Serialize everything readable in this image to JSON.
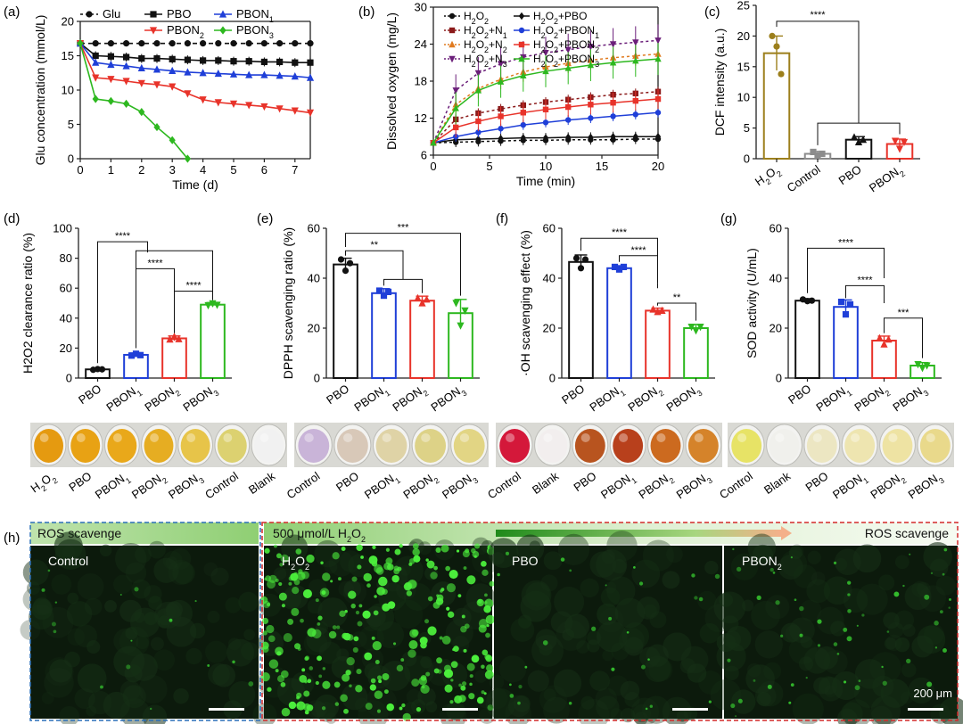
{
  "panel_labels": [
    "(a)",
    "(b)",
    "(c)",
    "(d)",
    "(e)",
    "(f)",
    "(g)",
    "(h)"
  ],
  "colors": {
    "black": "#111111",
    "blue": "#1f3fd8",
    "red": "#e8332a",
    "green": "#2db81f",
    "olive": "#9c7f1c",
    "grey": "#8c8c8c",
    "darkred": "#8b1a1a",
    "orange": "#e07a1f",
    "purple": "#6b1f7a"
  },
  "chart_data": [
    {
      "id": "a",
      "type": "line",
      "title": "",
      "xlabel": "Time (d)",
      "ylabel": "Glu concentration (mmol/L)",
      "xlim": [
        0,
        7.5
      ],
      "ylim": [
        0,
        20
      ],
      "xticks": [
        0,
        1,
        2,
        3,
        4,
        5,
        6,
        7
      ],
      "yticks": [
        0,
        5,
        10,
        15,
        20
      ],
      "series": [
        {
          "name": "Glu",
          "color": "#111111",
          "marker": "circle",
          "dash": true,
          "x": [
            0,
            0.5,
            1,
            1.5,
            2,
            2.5,
            3,
            3.5,
            4,
            4.5,
            5,
            5.5,
            6,
            6.5,
            7,
            7.5
          ],
          "y": [
            16.8,
            16.8,
            16.8,
            16.8,
            16.8,
            16.8,
            16.8,
            16.8,
            16.8,
            16.8,
            16.8,
            16.8,
            16.8,
            16.8,
            16.8,
            16.8
          ]
        },
        {
          "name": "PBO",
          "color": "#111111",
          "marker": "square",
          "dash": false,
          "x": [
            0,
            0.5,
            1,
            1.5,
            2,
            2.5,
            3,
            3.5,
            4,
            4.5,
            5,
            5.5,
            6,
            6.5,
            7,
            7.5
          ],
          "y": [
            16.8,
            15.0,
            14.9,
            14.8,
            14.6,
            14.6,
            14.5,
            14.4,
            14.3,
            14.3,
            14.2,
            14.2,
            14.1,
            14.1,
            14.0,
            14.0
          ]
        },
        {
          "name": "PBON1",
          "color": "#1f3fd8",
          "marker": "triangle",
          "dash": false,
          "x": [
            0,
            0.5,
            1,
            1.5,
            2,
            2.5,
            3,
            3.5,
            4,
            4.5,
            5,
            5.5,
            6,
            6.5,
            7,
            7.5
          ],
          "y": [
            16.8,
            14.0,
            13.7,
            13.5,
            13.2,
            13.0,
            12.8,
            12.6,
            12.5,
            12.4,
            12.3,
            12.2,
            12.2,
            12.1,
            12.0,
            11.8
          ]
        },
        {
          "name": "PBON2",
          "color": "#e8332a",
          "marker": "tri-down",
          "dash": false,
          "x": [
            0,
            0.5,
            1,
            1.5,
            2,
            2.5,
            3,
            3.5,
            4,
            4.5,
            5,
            5.5,
            6,
            6.5,
            7,
            7.5
          ],
          "y": [
            16.8,
            11.8,
            11.6,
            11.3,
            11.0,
            10.8,
            10.5,
            9.5,
            8.6,
            8.2,
            8.0,
            7.8,
            7.6,
            7.3,
            7.0,
            6.7
          ]
        },
        {
          "name": "PBON3",
          "color": "#2db81f",
          "marker": "diamond",
          "dash": false,
          "x": [
            0,
            0.5,
            1,
            1.5,
            2,
            2.5,
            3,
            3.5
          ],
          "y": [
            16.8,
            8.7,
            8.4,
            8.0,
            6.8,
            4.6,
            2.7,
            0
          ]
        }
      ],
      "legend": [
        {
          "name": "Glu",
          "sub": ""
        },
        {
          "name": "PBO",
          "sub": ""
        },
        {
          "name": "PBON",
          "sub": "1"
        },
        {
          "name": "PBON",
          "sub": "2"
        },
        {
          "name": "PBON",
          "sub": "3"
        }
      ]
    },
    {
      "id": "b",
      "type": "line",
      "xlabel": "Time (min)",
      "ylabel": "Dissolved oxygen (mg/L)",
      "xlim": [
        0,
        20
      ],
      "ylim": [
        6,
        30
      ],
      "xticks": [
        0,
        5,
        10,
        15,
        20
      ],
      "yticks": [
        6,
        12,
        18,
        24,
        30
      ],
      "x": [
        0,
        2,
        4,
        6,
        8,
        10,
        12,
        14,
        16,
        18,
        20
      ],
      "series": [
        {
          "name": "H2O2",
          "label": "H",
          "color": "#111111",
          "marker": "circle",
          "dash": true,
          "y": [
            8,
            8.1,
            8.2,
            8.3,
            8.4,
            8.4,
            8.5,
            8.5,
            8.5,
            8.6,
            8.6
          ]
        },
        {
          "name": "H2O2+N1",
          "color": "#8b1a1a",
          "marker": "square",
          "dash": true,
          "y": [
            8,
            11.8,
            12.8,
            13.5,
            14.1,
            14.6,
            15.0,
            15.4,
            15.8,
            16.0,
            16.3
          ]
        },
        {
          "name": "H2O2+N2",
          "color": "#e07a1f",
          "marker": "triangle",
          "dash": true,
          "y": [
            8,
            14.2,
            16.8,
            18.3,
            19.5,
            20.3,
            20.9,
            21.4,
            21.8,
            22.1,
            22.4
          ]
        },
        {
          "name": "H2O2+N3",
          "color": "#6b1f7a",
          "marker": "tri-down",
          "dash": true,
          "y": [
            8,
            16.5,
            19.3,
            20.8,
            21.9,
            22.6,
            23.1,
            23.6,
            24.0,
            24.3,
            24.6
          ]
        },
        {
          "name": "H2O2+PBO",
          "color": "#111111",
          "marker": "diamond",
          "dash": false,
          "y": [
            8,
            8.5,
            8.6,
            8.7,
            8.8,
            8.8,
            8.9,
            8.9,
            9.0,
            9.0,
            9.0
          ]
        },
        {
          "name": "H2O2+PBON1",
          "color": "#1f3fd8",
          "marker": "circle",
          "dash": false,
          "y": [
            8,
            9.0,
            9.7,
            10.3,
            10.9,
            11.3,
            11.7,
            12.0,
            12.3,
            12.6,
            12.9
          ]
        },
        {
          "name": "H2O2+PBON2",
          "color": "#e8332a",
          "marker": "square",
          "dash": false,
          "y": [
            8,
            10.5,
            11.5,
            12.3,
            12.9,
            13.4,
            13.8,
            14.2,
            14.5,
            14.8,
            15.1
          ]
        },
        {
          "name": "H2O2+PBON3",
          "color": "#2db81f",
          "marker": "triangle",
          "dash": false,
          "y": [
            8,
            13.6,
            16.5,
            17.9,
            18.9,
            19.6,
            20.1,
            20.6,
            21.0,
            21.3,
            21.6
          ]
        }
      ],
      "legend": [
        {
          "a": "H",
          "b": "2",
          "c": "O",
          "d": "2",
          "e": ""
        },
        {
          "a": "H",
          "b": "2",
          "c": "O",
          "d": "2",
          "e": "+PBO"
        },
        {
          "a": "H",
          "b": "2",
          "c": "O",
          "d": "2",
          "e": "+N",
          "f": "1"
        },
        {
          "a": "H",
          "b": "2",
          "c": "O",
          "d": "2",
          "e": "+PBON",
          "f": "1"
        },
        {
          "a": "H",
          "b": "2",
          "c": "O",
          "d": "2",
          "e": "+N",
          "f": "2"
        },
        {
          "a": "H",
          "b": "2",
          "c": "O",
          "d": "2",
          "e": "+PBON",
          "f": "2"
        },
        {
          "a": "H",
          "b": "2",
          "c": "O",
          "d": "2",
          "e": "+N",
          "f": "3"
        },
        {
          "a": "H",
          "b": "2",
          "c": "O",
          "d": "2",
          "e": "+PBON",
          "f": "3"
        }
      ]
    },
    {
      "id": "c",
      "type": "bar",
      "ylabel": "DCF intensity (a.u.)",
      "ylim": [
        0,
        25
      ],
      "yticks": [
        0,
        5,
        10,
        15,
        20,
        25
      ],
      "categories": [
        "H2O2",
        "Control",
        "PBO",
        "PBON2"
      ],
      "tick_labels": [
        {
          "t": "H",
          "s1": "2",
          "t2": "O",
          "s2": "2"
        },
        {
          "t": "Control"
        },
        {
          "t": "PBO"
        },
        {
          "t": "PBON",
          "s1": "2"
        }
      ],
      "values": [
        17.2,
        0.8,
        3.1,
        2.4
      ],
      "errors": [
        2.8,
        0.4,
        0.5,
        0.8
      ],
      "points": [
        [
          20,
          18.3,
          13.8
        ],
        [
          1.1,
          0.5,
          0.8
        ],
        [
          3.5,
          2.7,
          3.1
        ],
        [
          2.9,
          1.6,
          2.7
        ]
      ],
      "colors": [
        "#9c7f1c",
        "#8c8c8c",
        "#111111",
        "#e8332a"
      ],
      "significance": [
        "****"
      ]
    },
    {
      "id": "d",
      "type": "bar",
      "ylabel": "H2O2 clearance ratio (%)",
      "ylim": [
        0,
        100
      ],
      "yticks": [
        0,
        20,
        40,
        60,
        80,
        100
      ],
      "categories": [
        "PBO",
        "PBON1",
        "PBON2",
        "PBON3"
      ],
      "values": [
        5.8,
        15.5,
        26.5,
        49.0
      ],
      "errors": [
        0.8,
        1.2,
        1.6,
        1.4
      ],
      "points": [
        [
          5.5,
          6.0,
          5.8
        ],
        [
          15.0,
          16.2,
          15.3
        ],
        [
          25.8,
          27.6,
          26.0
        ],
        [
          48.5,
          49.8,
          48.8
        ]
      ],
      "colors": [
        "#111111",
        "#1f3fd8",
        "#e8332a",
        "#2db81f"
      ],
      "significance": [
        "****",
        "****",
        "****"
      ]
    },
    {
      "id": "e",
      "type": "bar",
      "ylabel": "DPPH scavenging ratio (%)",
      "ylim": [
        0,
        60
      ],
      "yticks": [
        0,
        20,
        40,
        60
      ],
      "categories": [
        "PBO",
        "PBON1",
        "PBON2",
        "PBON3"
      ],
      "values": [
        45.5,
        34.0,
        31.0,
        26.0
      ],
      "errors": [
        2.5,
        1.8,
        1.8,
        5.5
      ],
      "points": [
        [
          47.5,
          43.0,
          46.0
        ],
        [
          35.0,
          33.0,
          34.5
        ],
        [
          32.0,
          30.0,
          31.5
        ],
        [
          30.0,
          21.0,
          27.0
        ]
      ],
      "colors": [
        "#111111",
        "#1f3fd8",
        "#e8332a",
        "#2db81f"
      ],
      "significance": [
        "**",
        "***"
      ]
    },
    {
      "id": "f",
      "type": "bar",
      "ylabel": "·OH scavenging effect (%)",
      "ylim": [
        0,
        60
      ],
      "yticks": [
        0,
        20,
        40,
        60
      ],
      "categories": [
        "PBO",
        "PBON1",
        "PBON2",
        "PBON3"
      ],
      "values": [
        46.5,
        44.0,
        27.0,
        20.0
      ],
      "errors": [
        2.8,
        1.0,
        1.0,
        1.5
      ],
      "points": [
        [
          48.0,
          44.0,
          47.5
        ],
        [
          44.5,
          43.5,
          44.5
        ],
        [
          27.5,
          26.5,
          27.0
        ],
        [
          20.5,
          19.0,
          20.5
        ]
      ],
      "colors": [
        "#111111",
        "#1f3fd8",
        "#e8332a",
        "#2db81f"
      ],
      "significance": [
        "****",
        "****",
        "**"
      ]
    },
    {
      "id": "g",
      "type": "bar",
      "ylabel": "SOD activity (U/mL)",
      "ylim": [
        0,
        60
      ],
      "yticks": [
        0,
        20,
        40,
        60
      ],
      "categories": [
        "PBO",
        "PBON1",
        "PBON2",
        "PBON3"
      ],
      "values": [
        31.0,
        28.5,
        15.0,
        5.0
      ],
      "errors": [
        0.8,
        2.8,
        1.8,
        1.2
      ],
      "points": [
        [
          31.5,
          30.8,
          31.0
        ],
        [
          30.5,
          25.5,
          29.5
        ],
        [
          16.0,
          13.5,
          15.5
        ],
        [
          5.5,
          4.0,
          5.0
        ]
      ],
      "colors": [
        "#111111",
        "#1f3fd8",
        "#e8332a",
        "#2db81f"
      ],
      "significance": [
        "****",
        "****",
        "***"
      ]
    }
  ],
  "wells": {
    "d": {
      "labels": [
        {
          "t": "H",
          "s": "2",
          "t2": "O",
          "s2": "2"
        },
        {
          "t": "PBO"
        },
        {
          "t": "PBON",
          "s": "1"
        },
        {
          "t": "PBON",
          "s": "2"
        },
        {
          "t": "PBON",
          "s": "3"
        },
        {
          "t": "Control"
        },
        {
          "t": "Blank"
        }
      ],
      "colors": [
        "#e59a10",
        "#e8a214",
        "#e9a81a",
        "#e6ad22",
        "#e7c449",
        "#dcd170",
        "#f1f1f1"
      ]
    },
    "e": {
      "labels": [
        {
          "t": "Control"
        },
        {
          "t": "PBO"
        },
        {
          "t": "PBON",
          "s": "1"
        },
        {
          "t": "PBON",
          "s": "2"
        },
        {
          "t": "PBON",
          "s": "3"
        }
      ],
      "colors": [
        "#c9b4d8",
        "#d8c8b8",
        "#dfd3a6",
        "#ddd287",
        "#e2d584"
      ]
    },
    "f": {
      "labels": [
        {
          "t": "Control"
        },
        {
          "t": "Blank"
        },
        {
          "t": "PBO"
        },
        {
          "t": "PBON",
          "s": "1"
        },
        {
          "t": "PBON",
          "s": "2"
        },
        {
          "t": "PBON",
          "s": "3"
        }
      ],
      "colors": [
        "#d4183a",
        "#f2eeee",
        "#b8541f",
        "#b8401c",
        "#cc6a1f",
        "#d5832a"
      ]
    },
    "g": {
      "labels": [
        {
          "t": "Control"
        },
        {
          "t": "Blank"
        },
        {
          "t": "PBO"
        },
        {
          "t": "PBON",
          "s": "1"
        },
        {
          "t": "PBON",
          "s": "2"
        },
        {
          "t": "PBON",
          "s": "3"
        }
      ],
      "colors": [
        "#e7e366",
        "#f0f0ec",
        "#ece6c2",
        "#eee5b0",
        "#eee3a3",
        "#e9d98b"
      ]
    }
  },
  "fluorescence": {
    "left_header": "ROS scavenge",
    "right_header_a": "500 μmol/L H",
    "right_header_sub": "2",
    "right_header_b": "O",
    "right_header_sub2": "2",
    "right_header_end": "ROS scavenge",
    "panels": [
      {
        "label": "Control",
        "sub": "",
        "density": 0.04
      },
      {
        "label": "H",
        "sub": "2",
        "label2": "O",
        "sub2": "2",
        "density": 1.0
      },
      {
        "label": "PBO",
        "sub": "",
        "density": 0.08
      },
      {
        "label": "PBON",
        "sub": "2",
        "density": 0.18
      }
    ],
    "scale_bar": "200 μm"
  }
}
